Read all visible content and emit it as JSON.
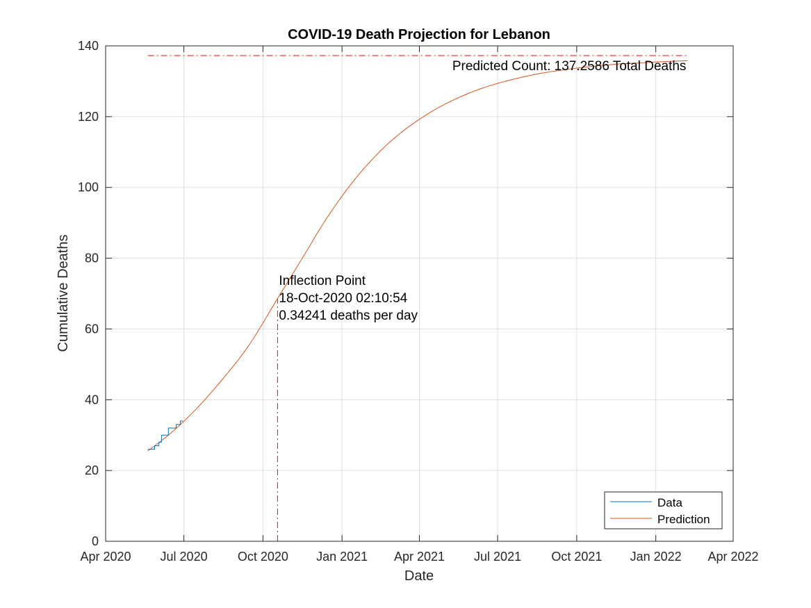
{
  "chart_data": {
    "type": "line",
    "title": "COVID-19 Death Projection for Lebanon",
    "xlabel": "Date",
    "ylabel": "Cumulative Deaths",
    "xlim": [
      "2020-04-01",
      "2022-04-01"
    ],
    "ylim": [
      0,
      140
    ],
    "x_ticks": [
      "2020-04-01",
      "2020-07-01",
      "2020-10-01",
      "2021-01-01",
      "2021-04-01",
      "2021-07-01",
      "2021-10-01",
      "2022-01-01",
      "2022-04-01"
    ],
    "x_tick_labels": [
      "Apr 2020",
      "Jul 2020",
      "Oct 2020",
      "Jan 2021",
      "Apr 2021",
      "Jul 2021",
      "Oct 2021",
      "Jan 2022",
      "Apr 2022"
    ],
    "y_ticks": [
      0,
      20,
      40,
      60,
      80,
      100,
      120,
      140
    ],
    "grid": true,
    "legend_position": "bottom-right",
    "series": [
      {
        "name": "Data",
        "color": "#0072BD",
        "step": true,
        "x": [
          "2020-05-20",
          "2020-05-26",
          "2020-05-28",
          "2020-06-02",
          "2020-06-05",
          "2020-06-13",
          "2020-06-17",
          "2020-06-22",
          "2020-06-24",
          "2020-06-27",
          "2020-06-30"
        ],
        "y": [
          26,
          26,
          27,
          28,
          30,
          32,
          32,
          33,
          33,
          34,
          34
        ]
      },
      {
        "name": "Prediction",
        "color": "#D95319",
        "x": [
          "2020-05-20",
          "2020-06-15",
          "2020-07-15",
          "2020-08-15",
          "2020-09-15",
          "2020-10-18",
          "2020-11-15",
          "2020-12-15",
          "2021-01-15",
          "2021-02-15",
          "2021-03-15",
          "2021-04-15",
          "2021-05-15",
          "2021-06-15",
          "2021-07-15",
          "2021-08-15",
          "2021-09-15",
          "2021-10-15",
          "2021-11-15",
          "2021-12-15",
          "2022-01-15",
          "2022-02-07"
        ],
        "y": [
          25.5,
          30.4,
          37.3,
          45.8,
          55.5,
          68.6,
          79.7,
          91.6,
          102.0,
          110.4,
          116.3,
          121.4,
          125.2,
          128.2,
          130.3,
          132.0,
          133.2,
          134.1,
          134.8,
          135.2,
          135.6,
          135.8
        ]
      }
    ],
    "reference_lines": {
      "horizontal": {
        "y": 137.2586,
        "x_start": "2020-05-20",
        "x_end": "2022-02-07",
        "color": "#FF0000",
        "style": "dash-dot"
      },
      "vertical": {
        "x": "2020-10-18",
        "y_start": 0,
        "y_end": 68.6,
        "color": "#FF0000",
        "style": "dash-dot"
      }
    },
    "annotations": [
      {
        "lines": [
          "Predicted Count: 137.2586 Total Deaths"
        ],
        "anchor_x": "2022-02-07",
        "anchor_y": 134.5,
        "align": "end"
      },
      {
        "lines": [
          "Inflection Point",
          "18-Oct-2020 02:10:54",
          "0.34241 deaths per day"
        ],
        "anchor_x": "2020-10-18",
        "anchor_y": 72.5,
        "align": "start"
      }
    ]
  }
}
